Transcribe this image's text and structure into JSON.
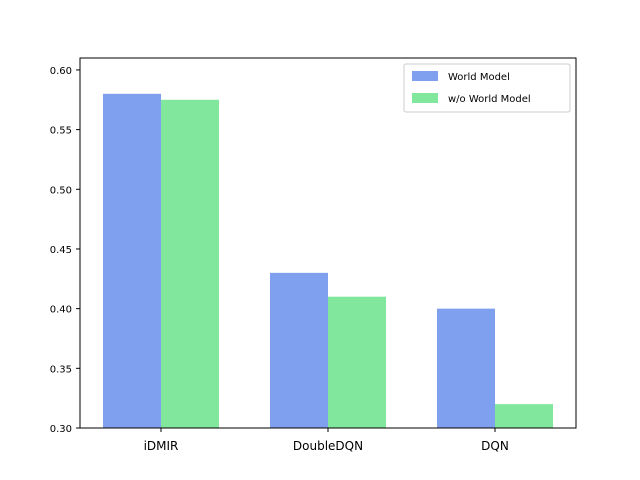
{
  "chart_data": {
    "type": "bar",
    "categories": [
      "iDMIR",
      "DoubleDQN",
      "DQN"
    ],
    "series": [
      {
        "name": "World Model",
        "values": [
          0.58,
          0.43,
          0.4
        ],
        "color": "#7f9fef"
      },
      {
        "name": "w/o World Model",
        "values": [
          0.575,
          0.41,
          0.32
        ],
        "color": "#80e79c"
      }
    ],
    "ylim": [
      0.3,
      0.61
    ],
    "yticks": [
      "0.30",
      "0.35",
      "0.40",
      "0.45",
      "0.50",
      "0.55",
      "0.60"
    ],
    "grid": false,
    "legend_position": "top-right",
    "title": "",
    "xlabel": "",
    "ylabel": ""
  }
}
